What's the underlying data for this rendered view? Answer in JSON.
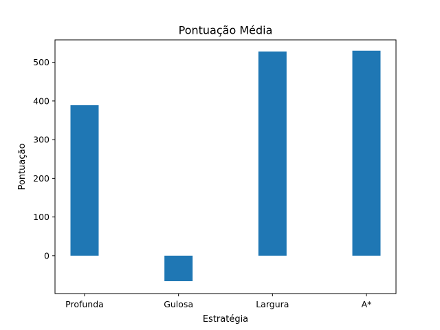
{
  "chart_data": {
    "type": "bar",
    "title": "Pontuação Média",
    "xlabel": "Estratégia",
    "ylabel": "Pontuação",
    "categories": [
      "Profunda",
      "Gulosa",
      "Largura",
      "A*"
    ],
    "values": [
      389,
      -66,
      528,
      530
    ],
    "ylim": [
      -98,
      558
    ],
    "yticks": [
      0,
      100,
      200,
      300,
      400,
      500
    ],
    "bar_color": "#1f77b4",
    "grid": false,
    "legend": "none"
  }
}
